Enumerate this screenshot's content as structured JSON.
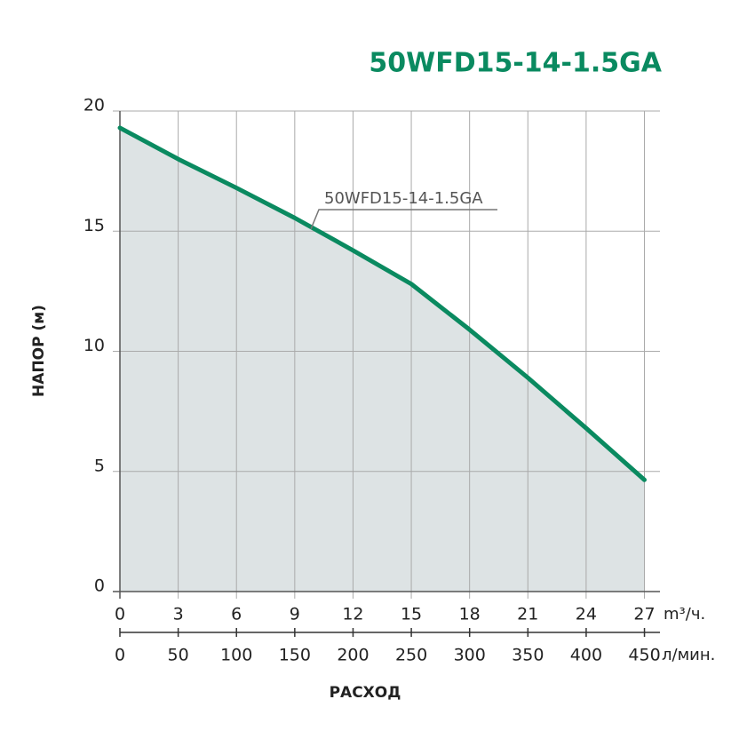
{
  "chart_data": {
    "type": "area-line",
    "title": "50WFD15-14-1.5GA",
    "annotation": "50WFD15-14-1.5GA",
    "y_label": "НАПОР (м)",
    "x_label": "РАСХОД",
    "x_unit": "m³/ч.",
    "x2_unit": "л/мин.",
    "x": [
      0,
      3,
      6,
      9,
      12,
      15,
      18,
      21,
      24,
      27
    ],
    "series": [
      {
        "name": "50WFD15-14-1.5GA",
        "color": "#0a8a60",
        "fill": "#dde3e4",
        "values": [
          19.3,
          18.0,
          16.8,
          15.55,
          14.2,
          12.8,
          10.9,
          8.9,
          6.8,
          4.65
        ]
      }
    ],
    "xlim": [
      0,
      27.8
    ],
    "xticks": [
      0,
      3,
      6,
      9,
      12,
      15,
      18,
      21,
      24,
      27
    ],
    "x2lim": [
      0,
      463.3
    ],
    "x2ticks": [
      0,
      50,
      100,
      150,
      200,
      250,
      300,
      350,
      400,
      450
    ],
    "ylim": [
      0,
      20
    ],
    "yticks": [
      0,
      5,
      10,
      15,
      20
    ],
    "grid": true
  }
}
